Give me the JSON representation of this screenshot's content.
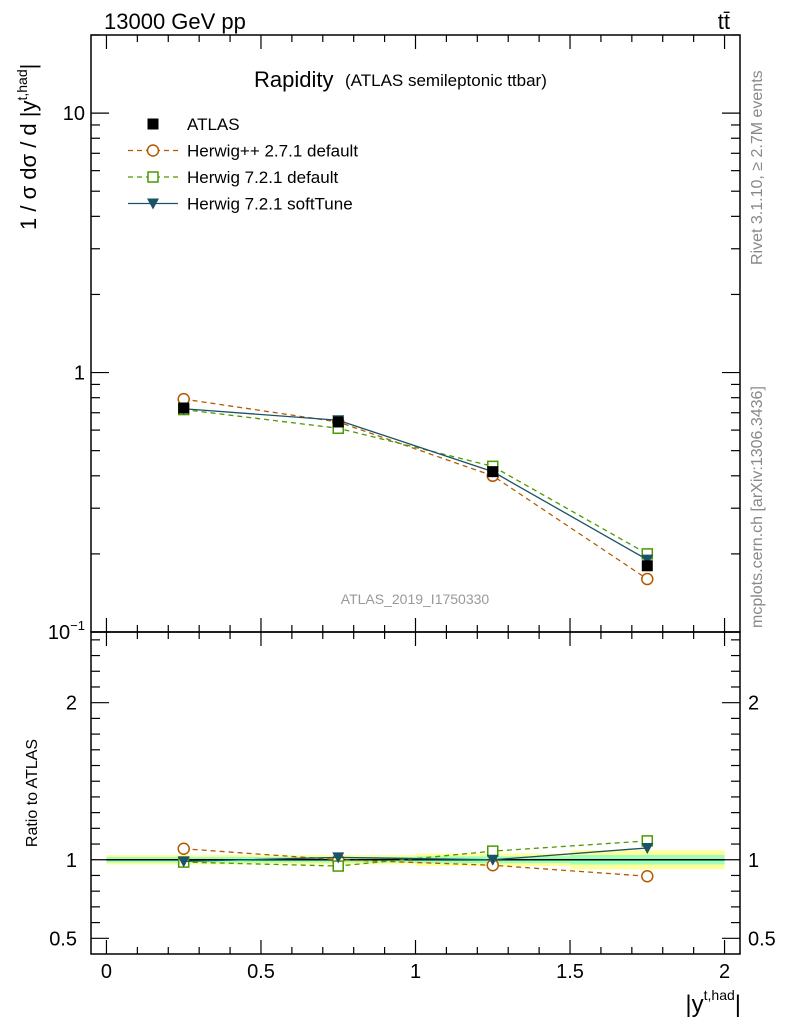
{
  "header": {
    "energy_label": "13000 GeV pp",
    "process_label": "tt̄"
  },
  "side_labels": {
    "rivet": "Rivet 3.1.10, ≥ 2.7M events",
    "mcplots": "mcplots.cern.ch [arXiv:1306.3436]"
  },
  "chart_data": [
    {
      "type": "line",
      "panel": "main",
      "title": "Rapidity",
      "subtitle": "(ATLAS semileptonic ttbar)",
      "ylabel": "1 / σ dσ / d |y^{t,had}|",
      "ylabel_parts": {
        "main": "1 / σ dσ / d |y",
        "sup": "t,had",
        "close": "|"
      },
      "yscale": "log",
      "ylim": [
        0.1,
        20
      ],
      "xlim": [
        -0.05,
        2.05
      ],
      "y_ticks": [
        {
          "value": 0.1,
          "base": "10",
          "exp": "−1"
        },
        {
          "value": 1,
          "label": "1"
        },
        {
          "value": 10,
          "label": "10"
        }
      ],
      "watermark": "ATLAS_2019_I1750330",
      "legend_position": "top-left",
      "x": [
        0.25,
        0.75,
        1.25,
        1.75
      ],
      "series": [
        {
          "name": "ATLAS",
          "values": [
            0.73,
            0.645,
            0.415,
            0.18
          ],
          "color": "#000000",
          "marker": "filled-square",
          "line": "none"
        },
        {
          "name": "Herwig++ 2.7.1 default",
          "values": [
            0.79,
            0.645,
            0.4,
            0.16
          ],
          "color": "#b35900",
          "marker": "open-circle",
          "line": "dashed"
        },
        {
          "name": "Herwig 7.2.1 default",
          "values": [
            0.72,
            0.61,
            0.435,
            0.2
          ],
          "color": "#4d9900",
          "marker": "open-square",
          "line": "dashed"
        },
        {
          "name": "Herwig 7.2.1 softTune",
          "values": [
            0.725,
            0.655,
            0.415,
            0.19
          ],
          "color": "#1a5266",
          "marker": "filled-triangle-down",
          "line": "solid"
        }
      ]
    },
    {
      "type": "line",
      "panel": "ratio",
      "ylabel": "Ratio to ATLAS",
      "ylim": [
        0.4,
        2.45
      ],
      "y_ticks": [
        {
          "value": 0.5,
          "label": "0.5"
        },
        {
          "value": 1,
          "label": "1"
        },
        {
          "value": 2,
          "label": "2"
        }
      ],
      "xlabel": "|y^{t,had}|",
      "xlabel_parts": {
        "main": "|y",
        "sup": "t,had",
        "close": "|"
      },
      "x_ticks": [
        {
          "value": 0,
          "label": "0"
        },
        {
          "value": 0.5,
          "label": "0.5"
        },
        {
          "value": 1,
          "label": "1"
        },
        {
          "value": 1.5,
          "label": "1.5"
        },
        {
          "value": 2,
          "label": "2"
        }
      ],
      "x": [
        0.25,
        0.75,
        1.25,
        1.75
      ],
      "uncertainty_band": {
        "bins": [
          [
            0,
            0.5
          ],
          [
            0.5,
            1
          ],
          [
            1,
            1.5
          ],
          [
            1.5,
            2
          ]
        ],
        "outer": [
          0.03,
          0.03,
          0.04,
          0.06
        ],
        "inner": [
          0.018,
          0.018,
          0.022,
          0.03
        ],
        "outer_color": "#ffff99",
        "inner_color": "#99ffbb"
      },
      "series": [
        {
          "name": "Herwig++ 2.7.1 default",
          "values": [
            1.07,
            1.0,
            0.965,
            0.895
          ],
          "errors": [
            0,
            0,
            0,
            0.03
          ],
          "color": "#b35900",
          "marker": "open-circle",
          "line": "dashed"
        },
        {
          "name": "Herwig 7.2.1 default",
          "values": [
            0.985,
            0.96,
            1.055,
            1.12
          ],
          "errors": [
            0,
            0,
            0,
            0.02
          ],
          "color": "#4d9900",
          "marker": "open-square",
          "line": "dashed"
        },
        {
          "name": "Herwig 7.2.1 softTune",
          "values": [
            0.99,
            1.015,
            1.0,
            1.075
          ],
          "errors": [
            0,
            0,
            0,
            0.025
          ],
          "color": "#1a5266",
          "marker": "filled-triangle-down",
          "line": "solid"
        }
      ]
    }
  ]
}
